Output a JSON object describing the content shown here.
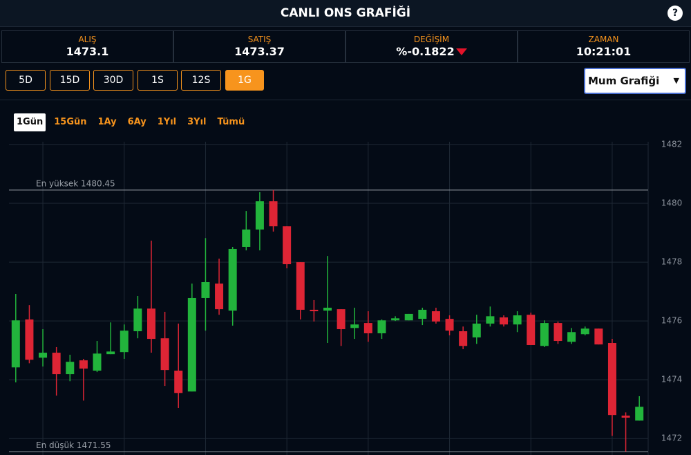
{
  "header": {
    "title": "CANLI ONS GRAFİĞİ",
    "help": "?"
  },
  "stats": [
    {
      "label": "ALIŞ",
      "value": "1473.1"
    },
    {
      "label": "SATIŞ",
      "value": "1473.37"
    },
    {
      "label": "DEĞİŞİM",
      "value": "%-0.1822"
    },
    {
      "label": "ZAMAN",
      "value": "10:21:01"
    }
  ],
  "period_buttons": [
    {
      "label": "5D",
      "active": false
    },
    {
      "label": "15D",
      "active": false
    },
    {
      "label": "30D",
      "active": false
    },
    {
      "label": "1S",
      "active": false
    },
    {
      "label": "12S",
      "active": false
    },
    {
      "label": "1G",
      "active": true
    }
  ],
  "chart_select": "Mum Grafiği",
  "range_tabs": [
    {
      "label": "1Gün",
      "active": true
    },
    {
      "label": "15Gün",
      "active": false
    },
    {
      "label": "1Ay",
      "active": false
    },
    {
      "label": "6Ay",
      "active": false
    },
    {
      "label": "1Yıl",
      "active": false
    },
    {
      "label": "3Yıl",
      "active": false
    },
    {
      "label": "Tümü",
      "active": false
    }
  ],
  "chart_data": {
    "type": "candlestick",
    "up_color": "#22b43c",
    "down_color": "#de2535",
    "grid": true,
    "ylim": [
      1471.44,
      1482.33
    ],
    "yticks": [
      1472,
      1474,
      1476,
      1478,
      1480,
      1482
    ],
    "annotations": [
      {
        "label": "En yüksek 1480.45",
        "value": 1480.45
      },
      {
        "label": "En düşük 1471.55",
        "value": 1471.55
      }
    ],
    "open": [
      1474.42,
      1476.05,
      1474.75,
      1474.92,
      1474.19,
      1474.66,
      1474.31,
      1474.87,
      1474.94,
      1475.65,
      1476.42,
      1475.41,
      1474.31,
      1473.6,
      1476.78,
      1477.27,
      1476.35,
      1478.52,
      1479.11,
      1480.07,
      1479.22,
      1478.0,
      1476.38,
      1476.35,
      1476.4,
      1475.76,
      1475.93,
      1475.58,
      1476.02,
      1476.02,
      1476.07,
      1476.33,
      1476.07,
      1475.65,
      1475.44,
      1475.91,
      1476.12,
      1475.88,
      1476.21,
      1475.15,
      1475.93,
      1475.29,
      1475.55,
      1475.74,
      1475.25,
      1472.78,
      1472.61
    ],
    "high": [
      1476.92,
      1476.54,
      1475.72,
      1475.11,
      1474.85,
      1474.71,
      1475.32,
      1475.95,
      1475.88,
      1476.85,
      1478.73,
      1476.31,
      1475.91,
      1477.27,
      1478.82,
      1478.12,
      1478.52,
      1479.74,
      1480.38,
      1480.45,
      1479.22,
      1478.0,
      1476.71,
      1478.21,
      1476.4,
      1476.45,
      1476.33,
      1476.05,
      1476.16,
      1476.24,
      1476.45,
      1476.45,
      1476.19,
      1475.81,
      1476.21,
      1476.49,
      1476.19,
      1476.33,
      1476.28,
      1476.02,
      1475.98,
      1475.76,
      1475.81,
      1475.74,
      1475.39,
      1472.89,
      1473.44
    ],
    "low": [
      1473.91,
      1474.56,
      1474.45,
      1473.46,
      1473.95,
      1473.29,
      1474.26,
      1474.87,
      1474.71,
      1475.41,
      1474.92,
      1473.79,
      1473.04,
      1473.6,
      1475.67,
      1476.21,
      1475.84,
      1478.4,
      1478.4,
      1479.04,
      1477.79,
      1476.05,
      1475.98,
      1475.25,
      1475.15,
      1475.39,
      1475.29,
      1475.39,
      1476.0,
      1476.02,
      1475.86,
      1475.91,
      1475.51,
      1475.04,
      1475.22,
      1475.81,
      1475.81,
      1475.62,
      1475.18,
      1475.11,
      1475.22,
      1475.22,
      1475.51,
      1475.2,
      1472.09,
      1471.55,
      1472.61
    ],
    "close": [
      1476.02,
      1474.68,
      1474.92,
      1474.19,
      1474.61,
      1474.38,
      1474.89,
      1474.96,
      1475.67,
      1476.42,
      1475.39,
      1474.33,
      1473.55,
      1476.78,
      1477.32,
      1476.4,
      1478.45,
      1479.11,
      1480.07,
      1479.22,
      1477.93,
      1476.38,
      1476.33,
      1476.45,
      1475.72,
      1475.88,
      1475.58,
      1476.02,
      1476.09,
      1476.24,
      1476.38,
      1475.98,
      1475.67,
      1475.15,
      1475.91,
      1476.16,
      1475.88,
      1476.19,
      1475.18,
      1475.93,
      1475.32,
      1475.62,
      1475.74,
      1475.2,
      1472.8,
      1472.71,
      1473.08
    ]
  }
}
